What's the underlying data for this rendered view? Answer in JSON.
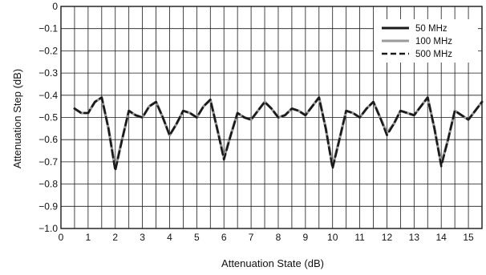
{
  "chart_data": {
    "type": "line",
    "xlabel": "Attenuation State (dB)",
    "ylabel": "Attenuation Step (dB)",
    "xlim": [
      0,
      15.5
    ],
    "ylim": [
      -1.0,
      0
    ],
    "x_ticks": [
      0,
      1,
      2,
      3,
      4,
      5,
      6,
      7,
      8,
      9,
      10,
      11,
      12,
      13,
      14,
      15
    ],
    "y_ticks": [
      0,
      -0.1,
      -0.2,
      -0.3,
      -0.4,
      -0.5,
      -0.6,
      -0.7,
      -0.8,
      -0.9,
      -1.0
    ],
    "y_tick_labels": [
      "0",
      "−0.1",
      "−0.2",
      "−0.3",
      "−0.4",
      "−0.5",
      "−0.6",
      "−0.7",
      "−0.8",
      "−0.9",
      "−1.0"
    ],
    "grid": true,
    "minor_x_grid_step": 0.5,
    "legend_position": "top-right",
    "colors": {
      "grid": "#1a1a1a",
      "frame": "#1a1a1a"
    },
    "series": [
      {
        "name": "50 MHz",
        "color": "#1a1a1a",
        "style": "solid",
        "x": [
          0.5,
          0.75,
          1.0,
          1.25,
          1.5,
          1.75,
          2.0,
          2.25,
          2.5,
          2.75,
          3.0,
          3.25,
          3.5,
          3.75,
          4.0,
          4.25,
          4.5,
          4.75,
          5.0,
          5.25,
          5.5,
          5.75,
          6.0,
          6.25,
          6.5,
          6.75,
          7.0,
          7.25,
          7.5,
          7.75,
          8.0,
          8.25,
          8.5,
          8.75,
          9.0,
          9.25,
          9.5,
          9.75,
          10.0,
          10.25,
          10.5,
          10.75,
          11.0,
          11.25,
          11.5,
          11.75,
          12.0,
          12.25,
          12.5,
          12.75,
          13.0,
          13.25,
          13.5,
          13.75,
          14.0,
          14.25,
          14.5,
          14.75,
          15.0,
          15.25,
          15.5
        ],
        "y": [
          -0.46,
          -0.48,
          -0.48,
          -0.43,
          -0.41,
          -0.55,
          -0.73,
          -0.6,
          -0.47,
          -0.49,
          -0.5,
          -0.45,
          -0.43,
          -0.5,
          -0.58,
          -0.53,
          -0.47,
          -0.48,
          -0.5,
          -0.45,
          -0.42,
          -0.55,
          -0.68,
          -0.58,
          -0.48,
          -0.5,
          -0.51,
          -0.47,
          -0.43,
          -0.46,
          -0.5,
          -0.49,
          -0.46,
          -0.47,
          -0.49,
          -0.45,
          -0.41,
          -0.55,
          -0.72,
          -0.6,
          -0.47,
          -0.48,
          -0.5,
          -0.46,
          -0.43,
          -0.5,
          -0.57,
          -0.53,
          -0.47,
          -0.48,
          -0.49,
          -0.45,
          -0.41,
          -0.55,
          -0.71,
          -0.6,
          -0.47,
          -0.49,
          -0.51,
          -0.47,
          -0.43
        ]
      },
      {
        "name": "100 MHz",
        "color": "#9a9a9a",
        "style": "solid",
        "x": [
          0.5,
          0.75,
          1.0,
          1.25,
          1.5,
          1.75,
          2.0,
          2.25,
          2.5,
          2.75,
          3.0,
          3.25,
          3.5,
          3.75,
          4.0,
          4.25,
          4.5,
          4.75,
          5.0,
          5.25,
          5.5,
          5.75,
          6.0,
          6.25,
          6.5,
          6.75,
          7.0,
          7.25,
          7.5,
          7.75,
          8.0,
          8.25,
          8.5,
          8.75,
          9.0,
          9.25,
          9.5,
          9.75,
          10.0,
          10.25,
          10.5,
          10.75,
          11.0,
          11.25,
          11.5,
          11.75,
          12.0,
          12.25,
          12.5,
          12.75,
          13.0,
          13.25,
          13.5,
          13.75,
          14.0,
          14.25,
          14.5,
          14.75,
          15.0,
          15.25,
          15.5
        ],
        "y": [
          -0.46,
          -0.48,
          -0.48,
          -0.43,
          -0.41,
          -0.55,
          -0.73,
          -0.6,
          -0.47,
          -0.49,
          -0.5,
          -0.45,
          -0.43,
          -0.5,
          -0.58,
          -0.53,
          -0.47,
          -0.48,
          -0.5,
          -0.45,
          -0.42,
          -0.55,
          -0.68,
          -0.58,
          -0.48,
          -0.5,
          -0.51,
          -0.47,
          -0.43,
          -0.46,
          -0.5,
          -0.49,
          -0.46,
          -0.47,
          -0.49,
          -0.45,
          -0.41,
          -0.55,
          -0.72,
          -0.6,
          -0.47,
          -0.48,
          -0.5,
          -0.46,
          -0.43,
          -0.5,
          -0.57,
          -0.53,
          -0.47,
          -0.48,
          -0.49,
          -0.45,
          -0.41,
          -0.55,
          -0.71,
          -0.6,
          -0.47,
          -0.49,
          -0.51,
          -0.47,
          -0.43
        ]
      },
      {
        "name": "500 MHz",
        "color": "#1a1a1a",
        "style": "dashed",
        "x": [
          0.5,
          0.75,
          1.0,
          1.25,
          1.5,
          1.75,
          2.0,
          2.25,
          2.5,
          2.75,
          3.0,
          3.25,
          3.5,
          3.75,
          4.0,
          4.25,
          4.5,
          4.75,
          5.0,
          5.25,
          5.5,
          5.75,
          6.0,
          6.25,
          6.5,
          6.75,
          7.0,
          7.25,
          7.5,
          7.75,
          8.0,
          8.25,
          8.5,
          8.75,
          9.0,
          9.25,
          9.5,
          9.75,
          10.0,
          10.25,
          10.5,
          10.75,
          11.0,
          11.25,
          11.5,
          11.75,
          12.0,
          12.25,
          12.5,
          12.75,
          13.0,
          13.25,
          13.5,
          13.75,
          14.0,
          14.25,
          14.5,
          14.75,
          15.0,
          15.25,
          15.5
        ],
        "y": [
          -0.46,
          -0.48,
          -0.48,
          -0.43,
          -0.41,
          -0.55,
          -0.74,
          -0.6,
          -0.47,
          -0.49,
          -0.5,
          -0.45,
          -0.43,
          -0.5,
          -0.58,
          -0.53,
          -0.47,
          -0.48,
          -0.5,
          -0.45,
          -0.42,
          -0.55,
          -0.69,
          -0.58,
          -0.48,
          -0.5,
          -0.51,
          -0.47,
          -0.43,
          -0.46,
          -0.5,
          -0.49,
          -0.46,
          -0.47,
          -0.49,
          -0.45,
          -0.41,
          -0.55,
          -0.73,
          -0.6,
          -0.47,
          -0.48,
          -0.5,
          -0.46,
          -0.43,
          -0.5,
          -0.58,
          -0.53,
          -0.47,
          -0.48,
          -0.49,
          -0.45,
          -0.41,
          -0.55,
          -0.72,
          -0.6,
          -0.47,
          -0.49,
          -0.51,
          -0.47,
          -0.43
        ]
      }
    ]
  }
}
